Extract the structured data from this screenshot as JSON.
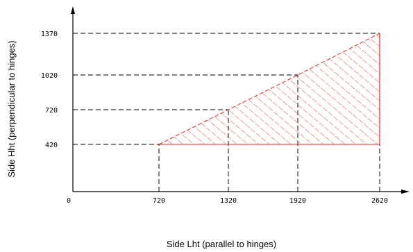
{
  "chart_data": {
    "type": "area",
    "xlabel": "Side Lht (parallel to hinges)",
    "ylabel": "Side Hht (perpendicular to hinges)",
    "origin_label": "0",
    "xticks": [
      720,
      1320,
      1920,
      2620
    ],
    "yticks": [
      420,
      720,
      1020,
      1370
    ],
    "xlim": [
      0,
      2620
    ],
    "ylim": [
      0,
      1370
    ],
    "region": {
      "upper_boundary": [
        {
          "x": 720,
          "y": 420
        },
        {
          "x": 1320,
          "y": 720
        },
        {
          "x": 1920,
          "y": 1020
        },
        {
          "x": 2620,
          "y": 1370
        }
      ],
      "lower_y": 420,
      "hatch": "diagonal",
      "color": "#e8261f"
    },
    "guide_lines": "dashed",
    "axis_color": "#000000"
  }
}
